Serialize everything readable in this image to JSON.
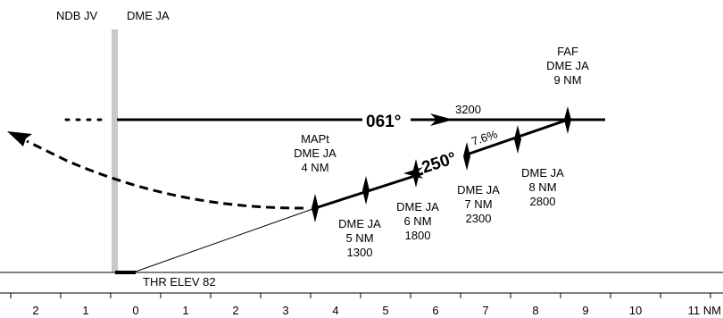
{
  "header": {
    "ndb": "NDB JV",
    "dme": "DME JA"
  },
  "approach": {
    "inbound_course": "061°",
    "outbound_course": "250°",
    "fap_altitude": "3200",
    "glide_slope": "7.6%"
  },
  "faf": {
    "title": "FAF",
    "station": "DME JA",
    "distance": "9 NM"
  },
  "mapt": {
    "title": "MAPt",
    "station": "DME JA",
    "distance": "4 NM"
  },
  "fixes": [
    {
      "station": "DME JA",
      "distance": "5 NM",
      "altitude": "1300"
    },
    {
      "station": "DME JA",
      "distance": "6 NM",
      "altitude": "1800"
    },
    {
      "station": "DME JA",
      "distance": "7 NM",
      "altitude": "2300"
    },
    {
      "station": "DME JA",
      "distance": "8 NM",
      "altitude": "2800"
    }
  ],
  "threshold": "THR ELEV 82",
  "scale": {
    "ticks": [
      "2",
      "1",
      "0",
      "1",
      "2",
      "3",
      "4",
      "5",
      "6",
      "7",
      "8",
      "9",
      "10",
      "11 NM"
    ]
  }
}
